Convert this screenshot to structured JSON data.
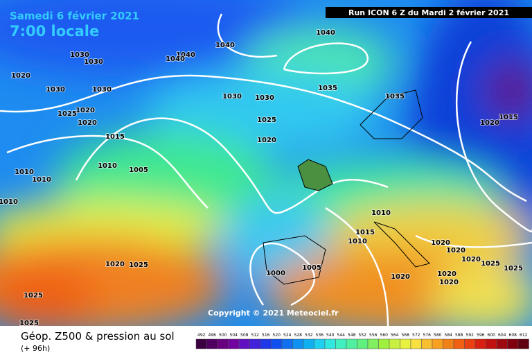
{
  "header": {
    "date": "Samedi 6 février 2021",
    "time": "7:00 locale",
    "run": "Run ICON 6 Z du Mardi 2 février 2021"
  },
  "copyright": "Copyright © 2021 Meteociel.fr",
  "footer": {
    "title": "Géop. Z500 & pression au sol",
    "lead": "(+ 96h)"
  },
  "colorbar": {
    "labels": [
      "492",
      "496",
      "500",
      "504",
      "508",
      "512",
      "516",
      "520",
      "524",
      "528",
      "532",
      "536",
      "540",
      "544",
      "548",
      "552",
      "556",
      "560",
      "564",
      "568",
      "572",
      "576",
      "580",
      "584",
      "588",
      "592",
      "596",
      "600",
      "604",
      "608",
      "612"
    ]
  },
  "isobars": {
    "labels": [
      "1040",
      "1040",
      "1030",
      "1030",
      "1040",
      "1040",
      "1020",
      "1030",
      "1030",
      "1035",
      "1030",
      "1030",
      "1035",
      "1025",
      "1020",
      "1020",
      "1025",
      "1020",
      "1015",
      "1015",
      "1020",
      "1010",
      "1005",
      "1010",
      "1010",
      "1010",
      "1010",
      "1015",
      "1010",
      "1020",
      "1020",
      "1020",
      "1025",
      "1025",
      "1020",
      "1025",
      "1005",
      "1000",
      "1020",
      "1020",
      "1020",
      "1025",
      "1025"
    ]
  }
}
